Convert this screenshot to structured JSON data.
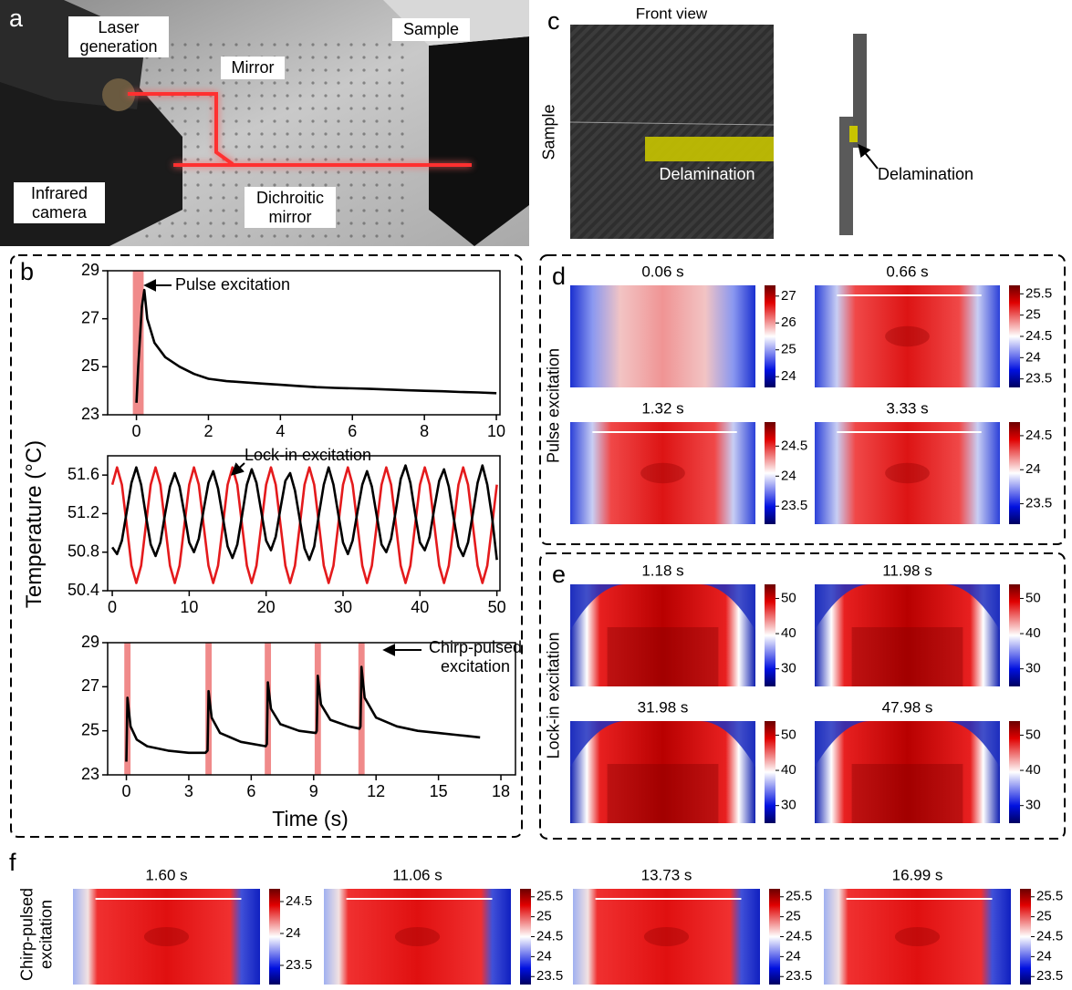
{
  "panel_labels": [
    "a",
    "b",
    "c",
    "d",
    "e",
    "f"
  ],
  "photo": {
    "annotations": [
      "Laser generation",
      "Mirror",
      "Sample",
      "Infrared camera",
      "Dichroitic mirror"
    ]
  },
  "sample_view": {
    "title": "Front view",
    "side_label": "Sample",
    "front_annotation": "Delamination",
    "side_annotation": "Delamination"
  },
  "chart_data": [
    {
      "type": "line",
      "annotation": "Pulse excitation",
      "x": [
        0,
        0.05,
        0.15,
        0.22,
        0.3,
        0.5,
        0.8,
        1.2,
        1.6,
        2,
        2.5,
        3,
        3.5,
        4,
        4.5,
        5,
        5.5,
        6,
        6.5,
        7,
        7.5,
        8,
        8.5,
        9,
        9.5,
        10
      ],
      "values": [
        23.5,
        25,
        27.5,
        28.2,
        27,
        26,
        25.4,
        25,
        24.7,
        24.5,
        24.4,
        24.35,
        24.3,
        24.25,
        24.2,
        24.15,
        24.12,
        24.1,
        24.08,
        24.05,
        24.02,
        24,
        23.98,
        23.95,
        23.93,
        23.9
      ],
      "color": "#000000",
      "highlights": [
        [
          -0.1,
          0.2
        ]
      ],
      "highlight_color": "#f08a8a",
      "xlim": [
        -0.8,
        10.1
      ],
      "ylim": [
        23,
        29
      ],
      "xticks": [
        0,
        2,
        4,
        6,
        8,
        10
      ],
      "yticks": [
        23,
        25,
        27,
        29
      ]
    },
    {
      "type": "line",
      "annotation": "Lock-in excitation",
      "ylabel": "Temperature (°C)",
      "x": [
        0,
        0.625,
        1.25,
        1.875,
        2.5,
        3.125,
        3.75,
        4.375,
        5,
        5.625,
        6.25,
        6.875,
        7.5,
        8.125,
        8.75,
        9.375,
        10,
        10.625,
        11.25,
        11.875,
        12.5,
        13.125,
        13.75,
        14.375,
        15,
        15.625,
        16.25,
        16.875,
        17.5,
        18.125,
        18.75,
        19.375,
        20,
        20.625,
        21.25,
        21.875,
        22.5,
        23.125,
        23.75,
        24.375,
        25,
        25.625,
        26.25,
        26.875,
        27.5,
        28.125,
        28.75,
        29.375,
        30,
        30.625,
        31.25,
        31.875,
        32.5,
        33.125,
        33.75,
        34.375,
        35,
        35.625,
        36.25,
        36.875,
        37.5,
        38.125,
        38.75,
        39.375,
        40,
        40.625,
        41.25,
        41.875,
        42.5,
        43.125,
        43.75,
        44.375,
        45,
        45.625,
        46.25,
        46.875,
        47.5,
        48.125,
        48.75,
        49.375,
        50
      ],
      "series": [
        {
          "color": "#e41a1c",
          "values": [
            51.5,
            51.68,
            51.5,
            51.08,
            50.66,
            50.48,
            50.66,
            51.08,
            51.5,
            51.68,
            51.5,
            51.08,
            50.66,
            50.48,
            50.66,
            51.08,
            51.5,
            51.68,
            51.5,
            51.08,
            50.66,
            50.48,
            50.66,
            51.08,
            51.5,
            51.68,
            51.5,
            51.08,
            50.66,
            50.48,
            50.66,
            51.08,
            51.5,
            51.68,
            51.5,
            51.08,
            50.66,
            50.48,
            50.66,
            51.08,
            51.5,
            51.68,
            51.5,
            51.08,
            50.66,
            50.48,
            50.66,
            51.08,
            51.5,
            51.68,
            51.5,
            51.08,
            50.66,
            50.48,
            50.66,
            51.08,
            51.5,
            51.68,
            51.5,
            51.08,
            50.66,
            50.48,
            50.66,
            51.08,
            51.5,
            51.68,
            51.5,
            51.08,
            50.66,
            50.48,
            50.66,
            51.08,
            51.5,
            51.68,
            51.5,
            51.08,
            50.66,
            50.48,
            50.66,
            51.08,
            51.5
          ]
        },
        {
          "color": "#000000",
          "values": [
            50.85,
            50.78,
            50.92,
            51.22,
            51.52,
            51.68,
            51.5,
            51.18,
            50.88,
            50.76,
            50.9,
            51.2,
            51.48,
            51.62,
            51.48,
            51.2,
            50.9,
            50.8,
            50.94,
            51.24,
            51.52,
            51.64,
            51.46,
            51.16,
            50.86,
            50.74,
            50.88,
            51.18,
            51.5,
            51.66,
            51.52,
            51.22,
            50.92,
            50.82,
            50.96,
            51.26,
            51.54,
            51.62,
            51.44,
            51.14,
            50.84,
            50.72,
            50.86,
            51.2,
            51.5,
            51.68,
            51.5,
            51.2,
            50.9,
            50.78,
            50.92,
            51.22,
            51.5,
            51.64,
            51.48,
            51.18,
            50.88,
            50.8,
            50.94,
            51.24,
            51.56,
            51.7,
            51.52,
            51.2,
            50.9,
            50.82,
            50.96,
            51.26,
            51.54,
            51.66,
            51.48,
            51.16,
            50.86,
            50.76,
            50.9,
            51.2,
            51.52,
            51.7,
            51.5,
            51.16,
            50.72
          ]
        }
      ],
      "xlim": [
        -0.6,
        50.4
      ],
      "ylim": [
        50.4,
        51.8
      ],
      "xticks": [
        0,
        10,
        20,
        30,
        40,
        50
      ],
      "yticks": [
        50.4,
        50.8,
        51.2,
        51.6
      ]
    },
    {
      "type": "line",
      "annotation": "Chirp-pulsed excitation",
      "xlabel": "Time (s)",
      "x": [
        0,
        0.05,
        0.2,
        0.5,
        1,
        2,
        3,
        3.8,
        3.9,
        3.95,
        4.1,
        4.5,
        5.5,
        6.7,
        6.75,
        6.8,
        6.95,
        7.4,
        8.3,
        9.1,
        9.15,
        9.2,
        9.35,
        9.8,
        10.7,
        11.2,
        11.25,
        11.3,
        11.45,
        12,
        13,
        14,
        15,
        16,
        17
      ],
      "values": [
        23.6,
        26.5,
        25.2,
        24.6,
        24.3,
        24.1,
        24,
        24,
        24.1,
        26.8,
        25.6,
        24.9,
        24.5,
        24.3,
        24.4,
        27.2,
        26,
        25.3,
        25,
        24.9,
        25,
        27.5,
        26.2,
        25.5,
        25.2,
        25.1,
        25.2,
        27.9,
        26.5,
        25.6,
        25.2,
        25,
        24.9,
        24.8,
        24.7
      ],
      "color": "#000000",
      "highlights": [
        [
          -0.1,
          0.2
        ],
        [
          3.8,
          4.1
        ],
        [
          6.65,
          6.95
        ],
        [
          9.05,
          9.35
        ],
        [
          11.15,
          11.45
        ]
      ],
      "highlight_color": "#f08a8a",
      "xlim": [
        -0.9,
        18.7
      ],
      "ylim": [
        23,
        29
      ],
      "xticks": [
        0,
        3,
        6,
        9,
        12,
        15,
        18
      ],
      "yticks": [
        23,
        25,
        27,
        29
      ]
    }
  ],
  "heatmaps": [
    {
      "label": "Pulse excitation",
      "maps": [
        {
          "title": "0.06 s",
          "clim": [
            23.6,
            27.4
          ],
          "cticks": [
            24,
            25,
            26,
            27
          ]
        },
        {
          "title": "0.66 s",
          "clim": [
            23.3,
            25.7
          ],
          "cticks": [
            23.5,
            24,
            24.5,
            25,
            25.5
          ]
        },
        {
          "title": "1.32 s",
          "clim": [
            23.2,
            24.9
          ],
          "cticks": [
            23.5,
            24,
            24.5
          ]
        },
        {
          "title": "3.33 s",
          "clim": [
            23.2,
            24.7
          ],
          "cticks": [
            23.5,
            24,
            24.5
          ]
        }
      ]
    },
    {
      "label": "Lock-in excitation",
      "maps": [
        {
          "title": "1.18 s",
          "clim": [
            25,
            54
          ],
          "cticks": [
            30,
            40,
            50
          ]
        },
        {
          "title": "11.98 s",
          "clim": [
            25,
            54
          ],
          "cticks": [
            30,
            40,
            50
          ]
        },
        {
          "title": "31.98 s",
          "clim": [
            25,
            54
          ],
          "cticks": [
            30,
            40,
            50
          ]
        },
        {
          "title": "47.98 s",
          "clim": [
            25,
            54
          ],
          "cticks": [
            30,
            40,
            50
          ]
        }
      ]
    },
    {
      "label": "Chirp-pulsed excitation",
      "maps": [
        {
          "title": "1.60 s",
          "clim": [
            23.2,
            24.7
          ],
          "cticks": [
            23.5,
            24,
            24.5
          ]
        },
        {
          "title": "11.06 s",
          "clim": [
            23.3,
            25.7
          ],
          "cticks": [
            23.5,
            24,
            24.5,
            25,
            25.5
          ]
        },
        {
          "title": "13.73 s",
          "clim": [
            23.3,
            25.7
          ],
          "cticks": [
            23.5,
            24,
            24.5,
            25,
            25.5
          ]
        },
        {
          "title": "16.99 s",
          "clim": [
            23.3,
            25.7
          ],
          "cticks": [
            23.5,
            24,
            24.5,
            25,
            25.5
          ]
        }
      ]
    }
  ]
}
